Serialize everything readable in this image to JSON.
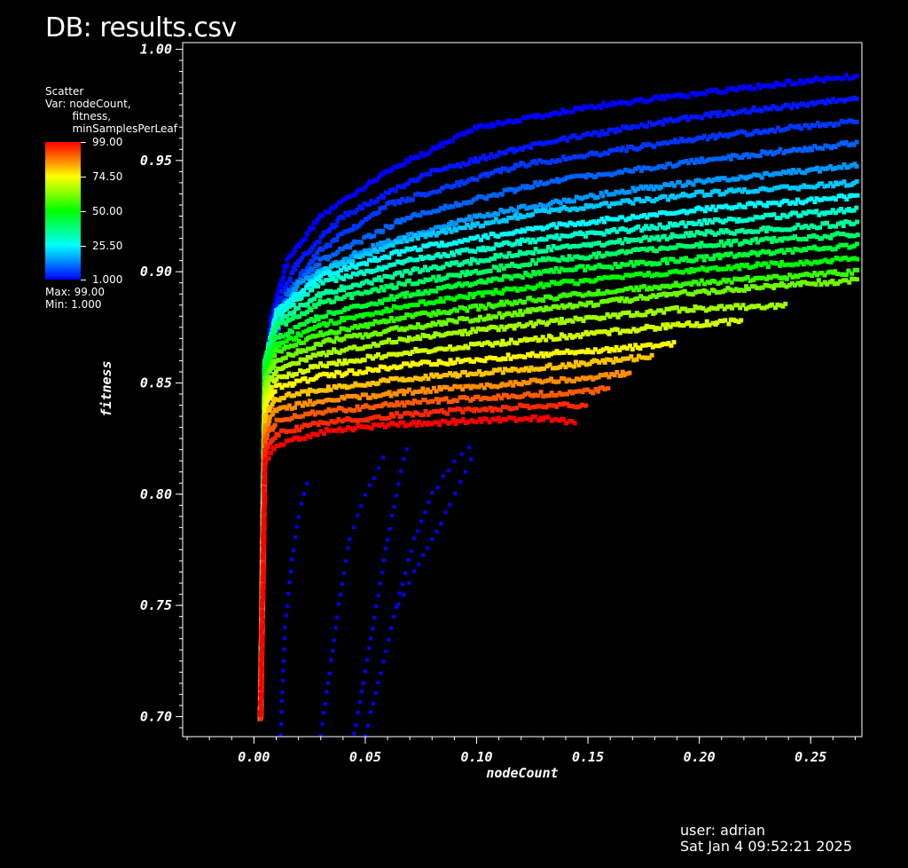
{
  "header": {
    "db_title": "DB: results.csv"
  },
  "legend": {
    "plot_type": "Scatter",
    "var_text": "Var: nodeCount,\n        fitness,\n        minSamplesPerLeaf",
    "ticks": [
      "99.00",
      "74.50",
      "50.00",
      "25.50",
      "1.000"
    ],
    "max_text": "Max:  99.00",
    "min_text": "Min:  1.000",
    "colormap": "hot"
  },
  "footer": {
    "user": "user: adrian",
    "date": "Sat Jan  4 09:52:21 2025"
  },
  "chart_data": {
    "type": "scatter",
    "title": "",
    "xlabel": "nodeCount",
    "ylabel": "fitness",
    "xlim": [
      -0.032,
      0.273
    ],
    "ylim": [
      0.691,
      1.003
    ],
    "x_ticks": [
      "0.00",
      "0.05",
      "0.10",
      "0.15",
      "0.20",
      "0.25"
    ],
    "x_tick_values": [
      0.0,
      0.05,
      0.1,
      0.15,
      0.2,
      0.25
    ],
    "y_ticks": [
      "0.70",
      "0.75",
      "0.80",
      "0.85",
      "0.90",
      "0.95",
      "1.00"
    ],
    "y_tick_values": [
      0.7,
      0.75,
      0.8,
      0.85,
      0.9,
      0.95,
      1.0
    ],
    "color_variable": "minSamplesPerLeaf",
    "color_range": [
      1.0,
      99.0
    ],
    "series": [
      {
        "minSamplesPerLeaf": 1,
        "points": [
          [
            0.003,
            0.7
          ],
          [
            0.004,
            0.8
          ],
          [
            0.005,
            0.85
          ],
          [
            0.008,
            0.88
          ],
          [
            0.015,
            0.905
          ],
          [
            0.03,
            0.925
          ],
          [
            0.06,
            0.945
          ],
          [
            0.1,
            0.965
          ],
          [
            0.15,
            0.974
          ],
          [
            0.2,
            0.98
          ],
          [
            0.25,
            0.986
          ],
          [
            0.272,
            0.988
          ]
        ]
      },
      {
        "minSamplesPerLeaf": 3,
        "points": [
          [
            0.003,
            0.7
          ],
          [
            0.004,
            0.81
          ],
          [
            0.006,
            0.86
          ],
          [
            0.01,
            0.885
          ],
          [
            0.02,
            0.905
          ],
          [
            0.04,
            0.925
          ],
          [
            0.08,
            0.945
          ],
          [
            0.13,
            0.958
          ],
          [
            0.2,
            0.97
          ],
          [
            0.272,
            0.978
          ]
        ]
      },
      {
        "minSamplesPerLeaf": 6,
        "points": [
          [
            0.003,
            0.7
          ],
          [
            0.005,
            0.83
          ],
          [
            0.008,
            0.865
          ],
          [
            0.015,
            0.89
          ],
          [
            0.03,
            0.91
          ],
          [
            0.06,
            0.93
          ],
          [
            0.12,
            0.948
          ],
          [
            0.2,
            0.96
          ],
          [
            0.272,
            0.968
          ]
        ]
      },
      {
        "minSamplesPerLeaf": 10,
        "points": [
          [
            0.003,
            0.7
          ],
          [
            0.005,
            0.84
          ],
          [
            0.008,
            0.87
          ],
          [
            0.015,
            0.89
          ],
          [
            0.03,
            0.905
          ],
          [
            0.07,
            0.925
          ],
          [
            0.13,
            0.94
          ],
          [
            0.2,
            0.95
          ],
          [
            0.272,
            0.958
          ]
        ]
      },
      {
        "minSamplesPerLeaf": 15,
        "points": [
          [
            0.003,
            0.7
          ],
          [
            0.005,
            0.845
          ],
          [
            0.009,
            0.875
          ],
          [
            0.02,
            0.895
          ],
          [
            0.05,
            0.91
          ],
          [
            0.1,
            0.925
          ],
          [
            0.17,
            0.937
          ],
          [
            0.272,
            0.948
          ]
        ]
      },
      {
        "minSamplesPerLeaf": 20,
        "points": [
          [
            0.003,
            0.7
          ],
          [
            0.005,
            0.85
          ],
          [
            0.01,
            0.88
          ],
          [
            0.03,
            0.9
          ],
          [
            0.07,
            0.915
          ],
          [
            0.13,
            0.927
          ],
          [
            0.2,
            0.935
          ],
          [
            0.272,
            0.94
          ]
        ]
      },
      {
        "minSamplesPerLeaf": 25,
        "points": [
          [
            0.003,
            0.7
          ],
          [
            0.005,
            0.855
          ],
          [
            0.01,
            0.882
          ],
          [
            0.03,
            0.898
          ],
          [
            0.07,
            0.91
          ],
          [
            0.13,
            0.92
          ],
          [
            0.2,
            0.928
          ],
          [
            0.272,
            0.934
          ]
        ]
      },
      {
        "minSamplesPerLeaf": 30,
        "points": [
          [
            0.003,
            0.7
          ],
          [
            0.005,
            0.86
          ],
          [
            0.01,
            0.88
          ],
          [
            0.03,
            0.895
          ],
          [
            0.07,
            0.905
          ],
          [
            0.13,
            0.915
          ],
          [
            0.2,
            0.922
          ],
          [
            0.272,
            0.928
          ]
        ]
      },
      {
        "minSamplesPerLeaf": 35,
        "points": [
          [
            0.003,
            0.7
          ],
          [
            0.005,
            0.86
          ],
          [
            0.01,
            0.877
          ],
          [
            0.03,
            0.89
          ],
          [
            0.07,
            0.9
          ],
          [
            0.13,
            0.91
          ],
          [
            0.2,
            0.917
          ],
          [
            0.272,
            0.922
          ]
        ]
      },
      {
        "minSamplesPerLeaf": 40,
        "points": [
          [
            0.003,
            0.7
          ],
          [
            0.005,
            0.86
          ],
          [
            0.01,
            0.875
          ],
          [
            0.03,
            0.886
          ],
          [
            0.07,
            0.895
          ],
          [
            0.13,
            0.905
          ],
          [
            0.2,
            0.912
          ],
          [
            0.272,
            0.917
          ]
        ]
      },
      {
        "minSamplesPerLeaf": 45,
        "points": [
          [
            0.003,
            0.7
          ],
          [
            0.005,
            0.858
          ],
          [
            0.01,
            0.87
          ],
          [
            0.03,
            0.88
          ],
          [
            0.07,
            0.89
          ],
          [
            0.13,
            0.9
          ],
          [
            0.2,
            0.906
          ],
          [
            0.272,
            0.912
          ]
        ]
      },
      {
        "minSamplesPerLeaf": 50,
        "points": [
          [
            0.003,
            0.7
          ],
          [
            0.005,
            0.855
          ],
          [
            0.01,
            0.867
          ],
          [
            0.03,
            0.876
          ],
          [
            0.07,
            0.885
          ],
          [
            0.13,
            0.894
          ],
          [
            0.2,
            0.901
          ],
          [
            0.272,
            0.906
          ]
        ]
      },
      {
        "minSamplesPerLeaf": 55,
        "points": [
          [
            0.003,
            0.7
          ],
          [
            0.005,
            0.852
          ],
          [
            0.01,
            0.864
          ],
          [
            0.03,
            0.872
          ],
          [
            0.07,
            0.88
          ],
          [
            0.13,
            0.888
          ],
          [
            0.2,
            0.895
          ],
          [
            0.272,
            0.9
          ]
        ]
      },
      {
        "minSamplesPerLeaf": 60,
        "points": [
          [
            0.003,
            0.7
          ],
          [
            0.005,
            0.85
          ],
          [
            0.01,
            0.86
          ],
          [
            0.03,
            0.868
          ],
          [
            0.07,
            0.875
          ],
          [
            0.13,
            0.883
          ],
          [
            0.19,
            0.89
          ],
          [
            0.25,
            0.895
          ],
          [
            0.272,
            0.896
          ]
        ]
      },
      {
        "minSamplesPerLeaf": 65,
        "points": [
          [
            0.003,
            0.7
          ],
          [
            0.005,
            0.847
          ],
          [
            0.01,
            0.856
          ],
          [
            0.03,
            0.863
          ],
          [
            0.07,
            0.87
          ],
          [
            0.13,
            0.877
          ],
          [
            0.19,
            0.883
          ],
          [
            0.24,
            0.885
          ]
        ]
      },
      {
        "minSamplesPerLeaf": 70,
        "points": [
          [
            0.003,
            0.7
          ],
          [
            0.005,
            0.844
          ],
          [
            0.01,
            0.852
          ],
          [
            0.03,
            0.858
          ],
          [
            0.07,
            0.864
          ],
          [
            0.13,
            0.87
          ],
          [
            0.18,
            0.875
          ],
          [
            0.22,
            0.878
          ]
        ]
      },
      {
        "minSamplesPerLeaf": 75,
        "points": [
          [
            0.003,
            0.7
          ],
          [
            0.005,
            0.84
          ],
          [
            0.01,
            0.848
          ],
          [
            0.03,
            0.853
          ],
          [
            0.07,
            0.858
          ],
          [
            0.13,
            0.863
          ],
          [
            0.17,
            0.866
          ],
          [
            0.19,
            0.868
          ]
        ]
      },
      {
        "minSamplesPerLeaf": 80,
        "points": [
          [
            0.003,
            0.7
          ],
          [
            0.005,
            0.835
          ],
          [
            0.01,
            0.843
          ],
          [
            0.03,
            0.847
          ],
          [
            0.07,
            0.852
          ],
          [
            0.12,
            0.856
          ],
          [
            0.16,
            0.86
          ],
          [
            0.18,
            0.862
          ]
        ]
      },
      {
        "minSamplesPerLeaf": 85,
        "points": [
          [
            0.003,
            0.7
          ],
          [
            0.005,
            0.83
          ],
          [
            0.01,
            0.838
          ],
          [
            0.03,
            0.842
          ],
          [
            0.07,
            0.846
          ],
          [
            0.12,
            0.85
          ],
          [
            0.15,
            0.852
          ],
          [
            0.17,
            0.855
          ]
        ]
      },
      {
        "minSamplesPerLeaf": 90,
        "points": [
          [
            0.003,
            0.7
          ],
          [
            0.005,
            0.825
          ],
          [
            0.01,
            0.833
          ],
          [
            0.03,
            0.837
          ],
          [
            0.07,
            0.841
          ],
          [
            0.11,
            0.844
          ],
          [
            0.15,
            0.846
          ],
          [
            0.16,
            0.848
          ]
        ]
      },
      {
        "minSamplesPerLeaf": 95,
        "points": [
          [
            0.003,
            0.7
          ],
          [
            0.005,
            0.82
          ],
          [
            0.01,
            0.827
          ],
          [
            0.03,
            0.832
          ],
          [
            0.07,
            0.836
          ],
          [
            0.1,
            0.838
          ],
          [
            0.13,
            0.84
          ],
          [
            0.15,
            0.84
          ]
        ]
      },
      {
        "minSamplesPerLeaf": 99,
        "points": [
          [
            0.003,
            0.7
          ],
          [
            0.005,
            0.815
          ],
          [
            0.01,
            0.822
          ],
          [
            0.03,
            0.828
          ],
          [
            0.06,
            0.831
          ],
          [
            0.1,
            0.833
          ],
          [
            0.13,
            0.834
          ],
          [
            0.145,
            0.832
          ]
        ]
      },
      {
        "minSamplesPerLeaf": 1,
        "points": [
          [
            0.012,
            0.692
          ],
          [
            0.014,
            0.74
          ],
          [
            0.017,
            0.77
          ],
          [
            0.02,
            0.79
          ],
          [
            0.025,
            0.81
          ]
        ]
      },
      {
        "minSamplesPerLeaf": 1,
        "points": [
          [
            0.03,
            0.692
          ],
          [
            0.034,
            0.72
          ],
          [
            0.038,
            0.75
          ],
          [
            0.043,
            0.78
          ],
          [
            0.05,
            0.8
          ],
          [
            0.06,
            0.82
          ]
        ]
      },
      {
        "minSamplesPerLeaf": 1,
        "points": [
          [
            0.045,
            0.692
          ],
          [
            0.05,
            0.72
          ],
          [
            0.055,
            0.75
          ],
          [
            0.06,
            0.78
          ],
          [
            0.066,
            0.81
          ],
          [
            0.07,
            0.825
          ]
        ]
      },
      {
        "minSamplesPerLeaf": 1,
        "points": [
          [
            0.05,
            0.692
          ],
          [
            0.057,
            0.72
          ],
          [
            0.064,
            0.75
          ],
          [
            0.072,
            0.78
          ],
          [
            0.08,
            0.8
          ],
          [
            0.09,
            0.815
          ],
          [
            0.1,
            0.825
          ]
        ]
      },
      {
        "minSamplesPerLeaf": 1,
        "points": [
          [
            0.065,
            0.75
          ],
          [
            0.072,
            0.765
          ],
          [
            0.08,
            0.78
          ],
          [
            0.088,
            0.795
          ],
          [
            0.095,
            0.81
          ],
          [
            0.1,
            0.82
          ]
        ]
      }
    ]
  }
}
